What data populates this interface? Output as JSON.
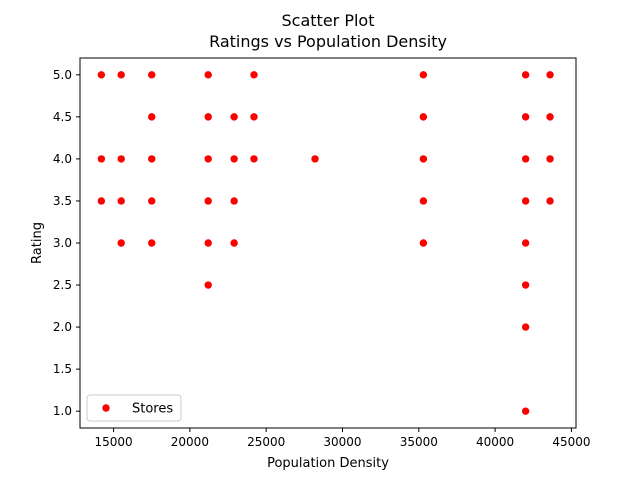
{
  "chart_data": {
    "type": "scatter",
    "title": "Scatter Plot",
    "subtitle": "Ratings vs Population Density",
    "xlabel": "Population Density",
    "ylabel": "Rating",
    "xlim": [
      12800,
      45300
    ],
    "ylim": [
      0.8,
      5.2
    ],
    "xticks": [
      15000,
      20000,
      25000,
      30000,
      35000,
      40000,
      45000
    ],
    "yticks": [
      1.0,
      1.5,
      2.0,
      2.5,
      3.0,
      3.5,
      4.0,
      4.5,
      5.0
    ],
    "grid": false,
    "legend_placement": "lower-left",
    "series": [
      {
        "name": "Stores",
        "color": "#ff0000",
        "marker": "circle",
        "points": [
          [
            14200,
            5.0
          ],
          [
            14200,
            4.0
          ],
          [
            14200,
            3.5
          ],
          [
            15500,
            5.0
          ],
          [
            15500,
            4.0
          ],
          [
            15500,
            3.5
          ],
          [
            15500,
            3.0
          ],
          [
            17500,
            5.0
          ],
          [
            17500,
            4.5
          ],
          [
            17500,
            4.0
          ],
          [
            17500,
            3.5
          ],
          [
            17500,
            3.0
          ],
          [
            21200,
            5.0
          ],
          [
            21200,
            4.5
          ],
          [
            21200,
            4.0
          ],
          [
            21200,
            3.5
          ],
          [
            21200,
            3.0
          ],
          [
            21200,
            2.5
          ],
          [
            22900,
            4.5
          ],
          [
            22900,
            4.0
          ],
          [
            22900,
            3.5
          ],
          [
            22900,
            3.0
          ],
          [
            24200,
            5.0
          ],
          [
            24200,
            4.5
          ],
          [
            24200,
            4.0
          ],
          [
            28200,
            4.0
          ],
          [
            35300,
            5.0
          ],
          [
            35300,
            4.5
          ],
          [
            35300,
            4.0
          ],
          [
            35300,
            3.5
          ],
          [
            35300,
            3.0
          ],
          [
            42000,
            5.0
          ],
          [
            42000,
            4.5
          ],
          [
            42000,
            4.0
          ],
          [
            42000,
            3.5
          ],
          [
            42000,
            3.0
          ],
          [
            42000,
            2.5
          ],
          [
            42000,
            2.0
          ],
          [
            42000,
            1.0
          ],
          [
            43600,
            5.0
          ],
          [
            43600,
            4.5
          ],
          [
            43600,
            4.0
          ],
          [
            43600,
            3.5
          ]
        ]
      }
    ]
  }
}
